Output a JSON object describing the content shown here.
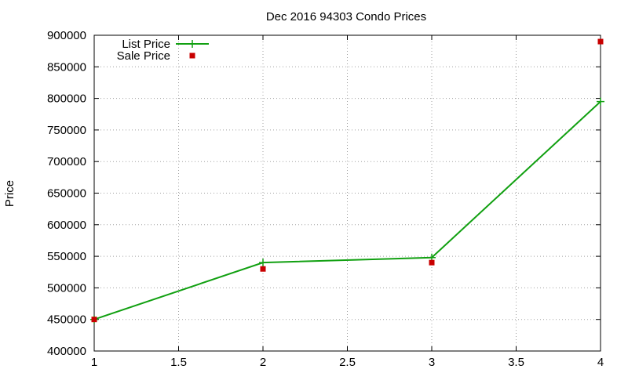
{
  "chart_data": {
    "type": "line",
    "title": "Dec 2016 94303 Condo Prices",
    "xlabel": "",
    "ylabel": "Price",
    "xlim": [
      1,
      4
    ],
    "ylim": [
      400000,
      900000
    ],
    "x_ticks": [
      "1",
      "1.5",
      "2",
      "2.5",
      "3",
      "3.5",
      "4"
    ],
    "y_ticks": [
      "400000",
      "450000",
      "500000",
      "550000",
      "600000",
      "650000",
      "700000",
      "750000",
      "800000",
      "850000",
      "900000"
    ],
    "grid": true,
    "legend_position": "top-left",
    "series": [
      {
        "name": "List Price",
        "style": "line-with-plus-markers",
        "color": "#11a011",
        "x": [
          1,
          2,
          3,
          4
        ],
        "y": [
          450000,
          540000,
          548000,
          795000
        ]
      },
      {
        "name": "Sale Price",
        "style": "square-markers",
        "color": "#c80000",
        "x": [
          1,
          2,
          3,
          4
        ],
        "y": [
          450000,
          530000,
          540000,
          890000
        ]
      }
    ]
  }
}
